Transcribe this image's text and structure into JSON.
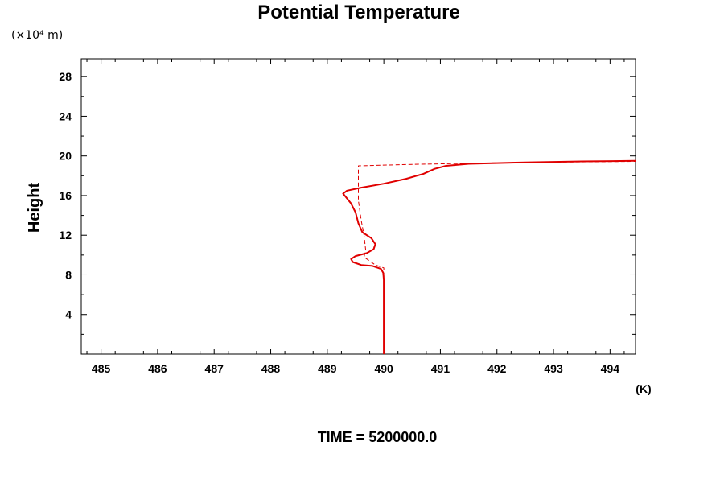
{
  "chart_data": {
    "type": "line",
    "title": "Potential Temperature",
    "ylabel": "Height",
    "y_unit": "(×10⁴ m)",
    "xunit": "(K)",
    "time_label": "TIME = 5200000.0",
    "xlim": [
      484.65,
      494.45
    ],
    "ylim": [
      0,
      29.8
    ],
    "x_ticks": [
      485,
      486,
      487,
      488,
      489,
      490,
      491,
      492,
      493,
      494
    ],
    "y_ticks": [
      4,
      8,
      12,
      16,
      20,
      24,
      28
    ],
    "x_tick_labels": [
      "485",
      "486",
      "487",
      "488",
      "489",
      "490",
      "491",
      "492",
      "493",
      "494"
    ],
    "y_tick_labels": [
      "4",
      "8",
      "12",
      "16",
      "20",
      "24",
      "28"
    ],
    "grid": false,
    "line_color": "#e00000",
    "series": [
      {
        "style": "solid",
        "points": [
          [
            490.0,
            0.0
          ],
          [
            490.0,
            5.0
          ],
          [
            490.0,
            7.5
          ],
          [
            489.99,
            8.2
          ],
          [
            489.95,
            8.6
          ],
          [
            489.8,
            8.9
          ],
          [
            489.6,
            9.0
          ],
          [
            489.45,
            9.3
          ],
          [
            489.42,
            9.6
          ],
          [
            489.5,
            9.9
          ],
          [
            489.7,
            10.2
          ],
          [
            489.82,
            10.6
          ],
          [
            489.85,
            11.1
          ],
          [
            489.78,
            11.7
          ],
          [
            489.62,
            12.3
          ],
          [
            489.55,
            13.2
          ],
          [
            489.5,
            14.3
          ],
          [
            489.42,
            15.2
          ],
          [
            489.28,
            16.2
          ],
          [
            489.35,
            16.5
          ],
          [
            489.6,
            16.8
          ],
          [
            490.0,
            17.2
          ],
          [
            490.4,
            17.7
          ],
          [
            490.7,
            18.2
          ],
          [
            490.9,
            18.7
          ],
          [
            491.1,
            19.0
          ],
          [
            491.5,
            19.2
          ],
          [
            492.5,
            19.35
          ],
          [
            493.5,
            19.45
          ],
          [
            494.45,
            19.5
          ]
        ]
      },
      {
        "style": "dashed",
        "points": [
          [
            490.0,
            0.0
          ],
          [
            490.0,
            8.7
          ],
          [
            489.85,
            9.0
          ],
          [
            489.65,
            9.8
          ],
          [
            489.68,
            10.5
          ],
          [
            489.65,
            12.0
          ],
          [
            489.6,
            13.5
          ],
          [
            489.55,
            15.5
          ],
          [
            489.55,
            19.0
          ],
          [
            490.5,
            19.15
          ],
          [
            491.5,
            19.25
          ],
          [
            492.5,
            19.35
          ],
          [
            493.5,
            19.4
          ],
          [
            494.45,
            19.45
          ]
        ]
      }
    ]
  }
}
